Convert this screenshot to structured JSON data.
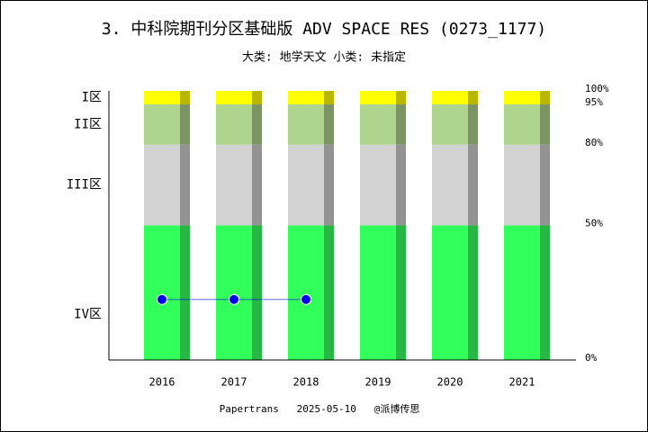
{
  "chart_data": {
    "type": "bar",
    "stacked": true,
    "title": "3. 中科院期刊分区基础版 ADV SPACE RES (0273_1177)",
    "subtitle": "大类: 地学天文 小类: 未指定",
    "footer": "Papertrans   2025-05-10   @派博传思",
    "categories": [
      "2016",
      "2017",
      "2018",
      "2019",
      "2020",
      "2021"
    ],
    "series": [
      {
        "name": "IV区",
        "color": "#33ff5a",
        "shade": "#26b843",
        "values": [
          50,
          50,
          50,
          50,
          50,
          50
        ]
      },
      {
        "name": "III区",
        "color": "#d3d3d3",
        "shade": "#939393",
        "values": [
          30,
          30,
          30,
          30,
          30,
          30
        ]
      },
      {
        "name": "II区",
        "color": "#aed490",
        "shade": "#7a9466",
        "values": [
          15,
          15,
          15,
          15,
          15,
          15
        ]
      },
      {
        "name": "I区",
        "color": "#ffff00",
        "shade": "#b8b800",
        "values": [
          5,
          5,
          5,
          5,
          5,
          5
        ]
      }
    ],
    "line": {
      "color": "#0000ee",
      "values": [
        22.5,
        22.5,
        22.5,
        null,
        null,
        null
      ]
    },
    "ylim": [
      0,
      100
    ],
    "yticks": [
      {
        "value": 0,
        "label": "0%"
      },
      {
        "value": 50,
        "label": "50%"
      },
      {
        "value": 80,
        "label": "80%"
      },
      {
        "value": 95,
        "label": "95%"
      },
      {
        "value": 100,
        "label": "100%"
      }
    ]
  }
}
